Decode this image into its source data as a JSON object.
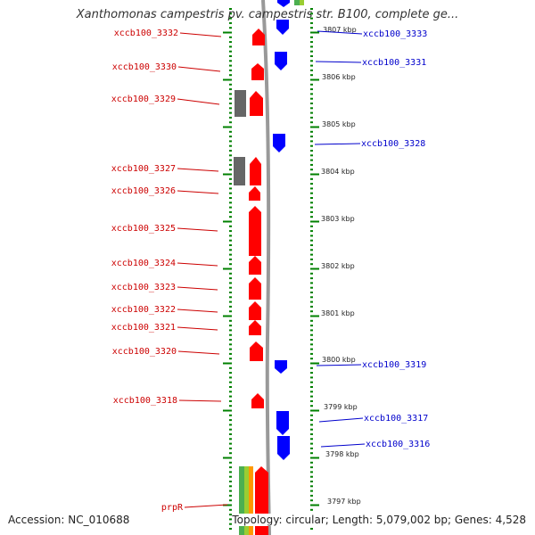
{
  "title": "Xanthomonas campestris pv. campestris str. B100, complete ge...",
  "footer": {
    "accession": "Accession: NC_010688",
    "summary": "Topology: circular; Length: 5,079,002 bp; Genes: 4,528"
  },
  "colors": {
    "reverse_gene": "#ff0000",
    "forward_gene": "#0000ff",
    "other_feature": "#666666",
    "tick": "#008000",
    "backbone": "#999999",
    "reverse_label": "#cc0000",
    "forward_label": "#0000cc"
  },
  "scale_labels": [
    "3807 kbp",
    "3806 kbp",
    "3805 kbp",
    "3804 kbp",
    "3803 kbp",
    "3802 kbp",
    "3801 kbp",
    "3800 kbp",
    "3799 kbp",
    "3798 kbp",
    "3797 kbp"
  ],
  "reverse_labels": [
    "xccb100_3332",
    "xccb100_3330",
    "xccb100_3329",
    "xccb100_3327",
    "xccb100_3326",
    "xccb100_3325",
    "xccb100_3324",
    "xccb100_3323",
    "xccb100_3322",
    "xccb100_3321",
    "xccb100_3320",
    "xccb100_3318",
    "prpR"
  ],
  "forward_labels": [
    "xccb100_3333",
    "xccb100_3331",
    "xccb100_3328",
    "xccb100_3319",
    "xccb100_3317",
    "xccb100_3316"
  ]
}
